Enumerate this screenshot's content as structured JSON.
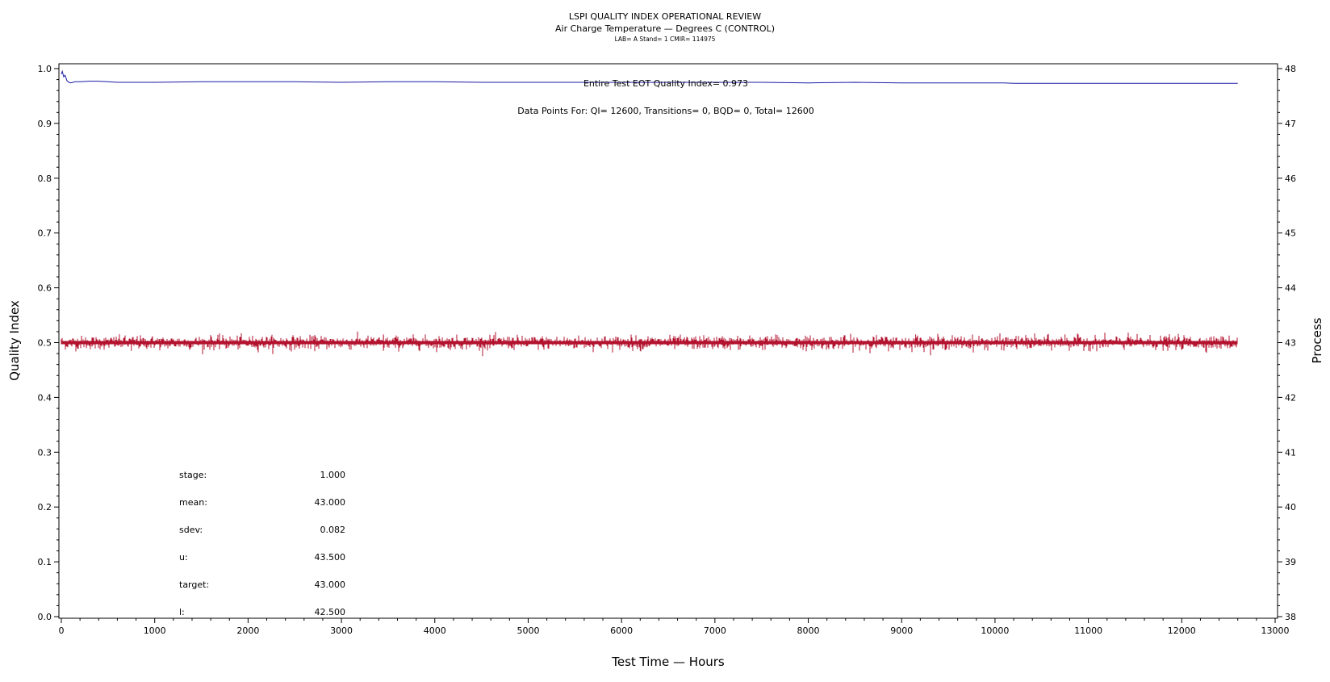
{
  "chart_data": {
    "type": "line",
    "title": "LSPI QUALITY INDEX OPERATIONAL REVIEW",
    "subtitle": "Air Charge Temperature — Degrees C (CONTROL)",
    "subsubtitle": "LAB= A Stand= 1 CMIR= 114975",
    "xlabel": "Test Time — Hours",
    "ylabel": "Quality Index",
    "y2label": "Process",
    "xlim": [
      0,
      13000
    ],
    "ylim": [
      0.0,
      1.0
    ],
    "y2lim": [
      38,
      48
    ],
    "grid": false,
    "x_ticks": [
      0,
      1000,
      2000,
      3000,
      4000,
      5000,
      6000,
      7000,
      8000,
      9000,
      10000,
      11000,
      12000,
      13000
    ],
    "y_ticks": [
      "0.0",
      "0.1",
      "0.2",
      "0.3",
      "0.4",
      "0.5",
      "0.6",
      "0.7",
      "0.8",
      "0.9",
      "1.0"
    ],
    "y2_ticks": [
      38,
      39,
      40,
      41,
      42,
      43,
      44,
      45,
      46,
      47,
      48
    ],
    "annotations": {
      "eot": "Entire Test EOT Quality Index=   0.973",
      "points": "Data Points For: QI= 12600, Transitions=      0, BQD=      0, Total= 12600"
    },
    "stats": [
      {
        "label": "stage:",
        "value": "1.000"
      },
      {
        "label": "mean:",
        "value": "43.000"
      },
      {
        "label": "sdev:",
        "value": "0.082"
      },
      {
        "label": "u:",
        "value": "43.500"
      },
      {
        "label": "target:",
        "value": "43.000"
      },
      {
        "label": "l:",
        "value": "42.500"
      }
    ],
    "series": [
      {
        "axis": "left",
        "color": "#1a1aa6",
        "x": [
          0,
          10,
          25,
          40,
          60,
          80,
          100,
          150,
          200,
          300,
          400,
          500,
          600,
          700,
          1000,
          1500,
          2000,
          2500,
          3000,
          3500,
          4000,
          4500,
          5000,
          5500,
          6000,
          6500,
          7000,
          7500,
          8000,
          8500,
          9000,
          9500,
          10000,
          10100,
          10200,
          11000,
          12000,
          12600
        ],
        "values": [
          0.99,
          0.995,
          0.985,
          0.988,
          0.978,
          0.975,
          0.974,
          0.976,
          0.976,
          0.977,
          0.977,
          0.976,
          0.975,
          0.975,
          0.975,
          0.976,
          0.976,
          0.976,
          0.975,
          0.976,
          0.976,
          0.975,
          0.975,
          0.975,
          0.975,
          0.975,
          0.975,
          0.975,
          0.974,
          0.975,
          0.974,
          0.974,
          0.974,
          0.974,
          0.973,
          0.973,
          0.973,
          0.973
        ]
      },
      {
        "axis": "right",
        "color": "#b3122e",
        "center": 43.0,
        "sdev": 0.082,
        "x_range": [
          0,
          12600
        ],
        "samples": 12600,
        "outliers_x": [
          3450,
          7650,
          9150,
          10750
        ],
        "outliers_y": [
          43.15,
          43.15,
          43.15,
          43.15
        ],
        "low_outliers_x": [
          750,
          3450,
          6200,
          11800
        ],
        "low_outliers_y": [
          42.85,
          42.85,
          42.85,
          42.85
        ]
      }
    ]
  }
}
